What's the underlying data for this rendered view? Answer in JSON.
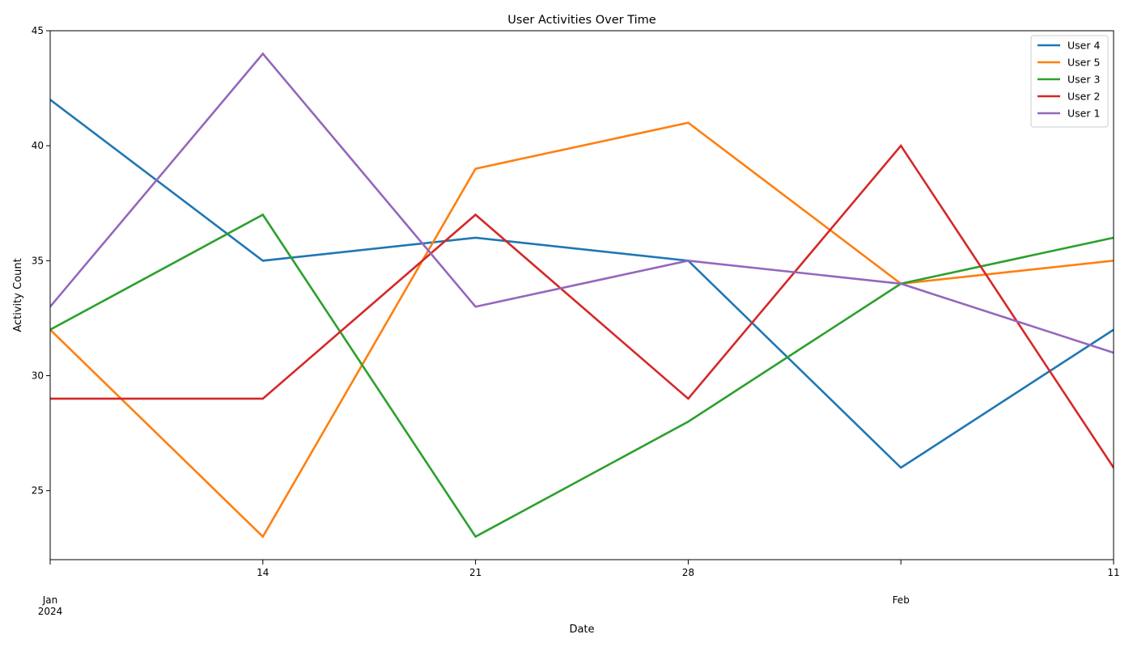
{
  "chart_data": {
    "type": "line",
    "title": "User Activities Over Time",
    "xlabel": "Date",
    "ylabel": "Activity Count",
    "x": [
      "2024-01-07",
      "2024-01-14",
      "2024-01-21",
      "2024-01-28",
      "2024-02-04",
      "2024-02-11"
    ],
    "xlim": [
      "2024-01-07",
      "2024-02-11"
    ],
    "ylim": [
      22,
      45
    ],
    "y_ticks": [
      25,
      30,
      35,
      40,
      45
    ],
    "x_tick_labels": [
      {
        "date": "2024-01-07",
        "lines": [
          "Jan",
          "2024"
        ]
      },
      {
        "date": "2024-01-14",
        "lines": [
          "14"
        ]
      },
      {
        "date": "2024-01-21",
        "lines": [
          "21"
        ]
      },
      {
        "date": "2024-01-28",
        "lines": [
          "28"
        ]
      },
      {
        "date": "2024-02-04",
        "lines": [
          "Feb"
        ]
      },
      {
        "date": "2024-02-11",
        "lines": [
          "11"
        ]
      }
    ],
    "grid": false,
    "legend_position": "top-right",
    "series": [
      {
        "name": "User 4",
        "color": "#1f77b4",
        "values": [
          42,
          35,
          36,
          35,
          26,
          32
        ]
      },
      {
        "name": "User 5",
        "color": "#ff7f0e",
        "values": [
          32,
          23,
          39,
          41,
          34,
          35
        ]
      },
      {
        "name": "User 3",
        "color": "#2ca02c",
        "values": [
          32,
          37,
          23,
          28,
          34,
          36
        ]
      },
      {
        "name": "User 2",
        "color": "#d62728",
        "values": [
          29,
          29,
          37,
          29,
          40,
          26
        ]
      },
      {
        "name": "User 1",
        "color": "#9467bd",
        "values": [
          33,
          44,
          33,
          35,
          34,
          31
        ]
      }
    ]
  }
}
